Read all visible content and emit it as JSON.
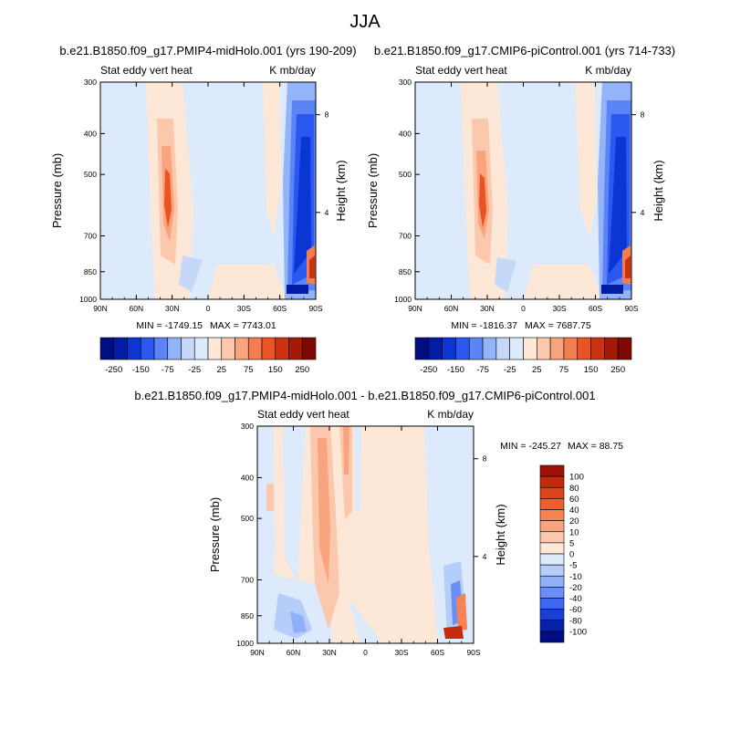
{
  "figure": {
    "title": "JJA"
  },
  "chart_data": [
    {
      "type": "heatmap",
      "title": "b.e21.B1850.f09_g17.PMIP4-midHolo.001 (yrs 190-209)",
      "left_string": "Stat eddy vert heat",
      "right_string": "K mb/day",
      "x_ticks": [
        "90N",
        "60N",
        "30N",
        "0",
        "30S",
        "60S",
        "90S"
      ],
      "y_ticks": [
        "300",
        "400",
        "500",
        "700",
        "850",
        "1000"
      ],
      "ylabel": "Pressure (mb)",
      "right_ylabel": "Height (km)",
      "right_ticks": [
        "8",
        "4"
      ],
      "min_label": "MIN = -1749.15",
      "max_label": "MAX = 7743.01",
      "colorbar_labels": [
        "-250",
        "-150",
        "-75",
        "-25",
        "25",
        "75",
        "150",
        "250"
      ],
      "colors": [
        "#000e81",
        "#001da3",
        "#0b36d4",
        "#2a58f0",
        "#5b85f7",
        "#93b4f8",
        "#c6d8f8",
        "#dceafb",
        "#fde8d8",
        "#fbc8ae",
        "#f8a47e",
        "#f47d52",
        "#ea5424",
        "#cc3210",
        "#a41a06",
        "#7d0a02"
      ]
    },
    {
      "type": "heatmap",
      "title": "b.e21.B1850.f09_g17.CMIP6-piControl.001 (yrs 714-733)",
      "left_string": "Stat eddy vert heat",
      "right_string": "K mb/day",
      "x_ticks": [
        "90N",
        "60N",
        "30N",
        "0",
        "30S",
        "60S",
        "90S"
      ],
      "y_ticks": [
        "300",
        "400",
        "500",
        "700",
        "850",
        "1000"
      ],
      "ylabel": "Pressure (mb)",
      "right_ylabel": "Height (km)",
      "right_ticks": [
        "8",
        "4"
      ],
      "min_label": "MIN = -1816.37",
      "max_label": "MAX = 7687.75",
      "colorbar_labels": [
        "-250",
        "-150",
        "-75",
        "-25",
        "25",
        "75",
        "150",
        "250"
      ]
    },
    {
      "type": "heatmap",
      "title": "b.e21.B1850.f09_g17.PMIP4-midHolo.001 - b.e21.B1850.f09_g17.CMIP6-piControl.001",
      "left_string": "Stat eddy vert heat",
      "right_string": "K mb/day",
      "x_ticks": [
        "90N",
        "60N",
        "30N",
        "0",
        "30S",
        "60S",
        "90S"
      ],
      "y_ticks": [
        "300",
        "400",
        "500",
        "700",
        "850",
        "1000"
      ],
      "ylabel": "Pressure (mb)",
      "right_ylabel": "Height (km)",
      "right_ticks": [
        "8",
        "4"
      ],
      "min_label": "MIN = -245.27",
      "max_label": "MAX =  88.75",
      "colorbar_labels": [
        "100",
        "80",
        "60",
        "40",
        "20",
        "10",
        "5",
        "0",
        "-5",
        "-10",
        "-20",
        "-40",
        "-60",
        "-80",
        "-100"
      ],
      "colors": [
        "#9c1206",
        "#c52a0c",
        "#de4418",
        "#ef5e2c",
        "#f58452",
        "#f8a47e",
        "#fbc8ae",
        "#fde8d8",
        "#dceafb",
        "#b4cdf9",
        "#8fb0f7",
        "#6b8ef4",
        "#3f66ef",
        "#1a3fd6",
        "#0722a8",
        "#000e81"
      ]
    }
  ]
}
